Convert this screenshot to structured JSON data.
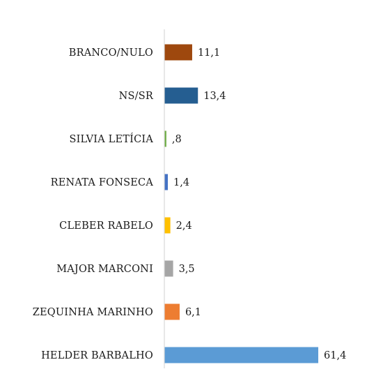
{
  "chart_data": {
    "type": "bar",
    "orientation": "horizontal",
    "categories": [
      "BRANCO/NULO",
      "NS/SR",
      "SILVIA LETÍCIA",
      "RENATA FONSECA",
      "CLEBER RABELO",
      "MAJOR MARCONI",
      "ZEQUINHA MARINHO",
      "HELDER BARBALHO"
    ],
    "values": [
      11.1,
      13.4,
      0.8,
      1.4,
      2.4,
      3.5,
      6.1,
      61.4
    ],
    "value_labels": [
      "11,1",
      "13,4",
      ",8",
      "1,4",
      "2,4",
      "3,5",
      "6,1",
      "61,4"
    ],
    "colors": [
      "#9e480e",
      "#255e91",
      "#70ad47",
      "#4472c4",
      "#ffc000",
      "#a5a5a5",
      "#ed7d31",
      "#5b9bd5"
    ],
    "xlim": [
      0,
      70
    ],
    "grid": false,
    "title": "",
    "xlabel": "",
    "ylabel": ""
  }
}
